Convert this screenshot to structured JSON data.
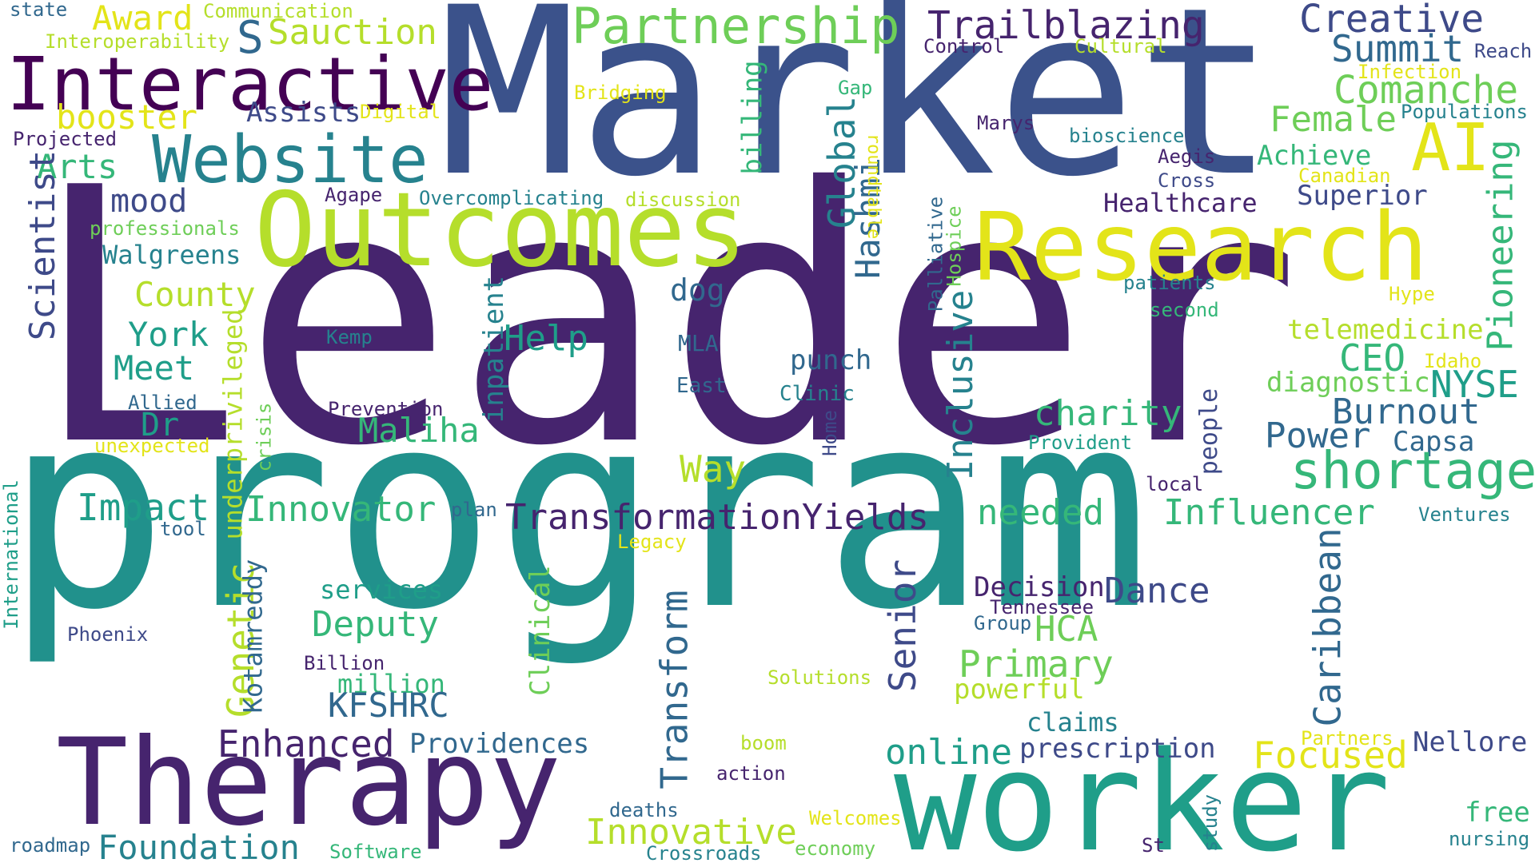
{
  "palette": {
    "dark_purple": "#46246e",
    "indigo": "#3e4a89",
    "blue_slate": "#31688e",
    "teal": "#26828e",
    "sea_green": "#1f9e89",
    "green": "#35b779",
    "lime": "#6ece58",
    "yellow_green": "#b5de2b",
    "yellow": "#e3e419"
  },
  "words": [
    {
      "id": "leader",
      "text": "Leader",
      "color": "#46246e"
    },
    {
      "id": "program",
      "text": "program",
      "color": "#21918c"
    },
    {
      "id": "market",
      "text": "Market",
      "color": "#3b528b"
    },
    {
      "id": "worker",
      "text": "worker",
      "color": "#1f9e89"
    },
    {
      "id": "therapy",
      "text": "Therapy",
      "color": "#46246e"
    },
    {
      "id": "outcomes",
      "text": "Outcomes",
      "color": "#b5de2b"
    },
    {
      "id": "research",
      "text": "Research",
      "color": "#e3e419"
    },
    {
      "id": "interactive",
      "text": "Interactive",
      "color": "#440154"
    },
    {
      "id": "website",
      "text": "Website",
      "color": "#26828e"
    },
    {
      "id": "partnership",
      "text": "Partnership",
      "color": "#6ece58"
    },
    {
      "id": "trailblazing",
      "text": "Trailblazing",
      "color": "#46246e"
    },
    {
      "id": "creative",
      "text": "Creative",
      "color": "#3e4a89"
    },
    {
      "id": "summit",
      "text": "Summit",
      "color": "#31688e"
    },
    {
      "id": "ai",
      "text": "AI",
      "color": "#e3e419"
    },
    {
      "id": "comanche",
      "text": "Comanche",
      "color": "#6ece58"
    },
    {
      "id": "female",
      "text": "Female",
      "color": "#6ece58"
    },
    {
      "id": "achieve",
      "text": "Achieve",
      "color": "#35b779"
    },
    {
      "id": "superior",
      "text": "Superior",
      "color": "#3e4a89"
    },
    {
      "id": "healthcare",
      "text": "Healthcare",
      "color": "#46246e"
    },
    {
      "id": "pioneering",
      "text": "Pioneering",
      "color": "#35b779"
    },
    {
      "id": "award",
      "text": "Award",
      "color": "#e3e419"
    },
    {
      "id": "sauction",
      "text": "Sauction",
      "color": "#b5de2b"
    },
    {
      "id": "s",
      "text": "S",
      "color": "#31688e"
    },
    {
      "id": "booster",
      "text": "booster",
      "color": "#e3e419"
    },
    {
      "id": "assists",
      "text": "Assists",
      "color": "#3e4a89"
    },
    {
      "id": "arts",
      "text": "Arts",
      "color": "#35b779"
    },
    {
      "id": "mood",
      "text": "mood",
      "color": "#3e4a89"
    },
    {
      "id": "scientist",
      "text": "Scientist",
      "color": "#3e4a89"
    },
    {
      "id": "walgreens",
      "text": "Walgreens",
      "color": "#26828e"
    },
    {
      "id": "county",
      "text": "County",
      "color": "#b5de2b"
    },
    {
      "id": "york",
      "text": "York",
      "color": "#1f9e89"
    },
    {
      "id": "meet",
      "text": "Meet",
      "color": "#1f9e89"
    },
    {
      "id": "dr",
      "text": "Dr",
      "color": "#1f9e89"
    },
    {
      "id": "maliha",
      "text": "Maliha",
      "color": "#35b779"
    },
    {
      "id": "help",
      "text": "Help",
      "color": "#1f9e89"
    },
    {
      "id": "global",
      "text": "Global",
      "color": "#26828e"
    },
    {
      "id": "hashmi",
      "text": "Hashmi",
      "color": "#31688e"
    },
    {
      "id": "billing",
      "text": "billing",
      "color": "#35b779"
    },
    {
      "id": "dog",
      "text": "dog",
      "color": "#31688e"
    },
    {
      "id": "mla",
      "text": "MLA",
      "color": "#31688e"
    },
    {
      "id": "punch",
      "text": "punch",
      "color": "#31688e"
    },
    {
      "id": "east",
      "text": "East",
      "color": "#31688e"
    },
    {
      "id": "clinic",
      "text": "Clinic",
      "color": "#26828e"
    },
    {
      "id": "charity",
      "text": "charity",
      "color": "#35b779"
    },
    {
      "id": "inclusive",
      "text": "Inclusive",
      "color": "#26828e"
    },
    {
      "id": "palliative",
      "text": "Palliative",
      "color": "#31688e"
    },
    {
      "id": "hospice",
      "text": "Hospice",
      "color": "#6ece58"
    },
    {
      "id": "home",
      "text": "Home",
      "color": "#3e4a89"
    },
    {
      "id": "way",
      "text": "Way",
      "color": "#b5de2b"
    },
    {
      "id": "power",
      "text": "Power",
      "color": "#31688e"
    },
    {
      "id": "burnout",
      "text": "Burnout",
      "color": "#31688e"
    },
    {
      "id": "capsa",
      "text": "Capsa",
      "color": "#31688e"
    },
    {
      "id": "shortage",
      "text": "shortage",
      "color": "#35b779"
    },
    {
      "id": "nyse",
      "text": "NYSE",
      "color": "#1f9e89"
    },
    {
      "id": "ceo",
      "text": "CEO",
      "color": "#35b779"
    },
    {
      "id": "diagnostic",
      "text": "diagnostic",
      "color": "#6ece58"
    },
    {
      "id": "telemedicine",
      "text": "telemedicine",
      "color": "#b5de2b"
    },
    {
      "id": "idaho",
      "text": "Idaho",
      "color": "#e3e419"
    },
    {
      "id": "hype",
      "text": "Hype",
      "color": "#e3e419"
    },
    {
      "id": "patients",
      "text": "patients",
      "color": "#26828e"
    },
    {
      "id": "second",
      "text": "second",
      "color": "#35b779"
    },
    {
      "id": "people",
      "text": "people",
      "color": "#3e4a89"
    },
    {
      "id": "provident",
      "text": "Provident",
      "color": "#1f9e89"
    },
    {
      "id": "local",
      "text": "local",
      "color": "#46246e"
    },
    {
      "id": "impact",
      "text": "Impact",
      "color": "#1f9e89"
    },
    {
      "id": "innovator",
      "text": "Innovator",
      "color": "#35b779"
    },
    {
      "id": "transformationyields",
      "text": "TransformationYields",
      "color": "#46246e"
    },
    {
      "id": "needed",
      "text": "needed",
      "color": "#35b779"
    },
    {
      "id": "influencer",
      "text": "Influencer",
      "color": "#35b779"
    },
    {
      "id": "ventures",
      "text": "Ventures",
      "color": "#26828e"
    },
    {
      "id": "inpatient",
      "text": "inpatient",
      "color": "#26828e"
    },
    {
      "id": "underprivileged",
      "text": "underprivileged",
      "color": "#b5de2b"
    },
    {
      "id": "crisis",
      "text": "crisis",
      "color": "#6ece58"
    },
    {
      "id": "genetic",
      "text": "Genetic",
      "color": "#b5de2b"
    },
    {
      "id": "kotamreddy",
      "text": "Kotamreddy",
      "color": "#31688e"
    },
    {
      "id": "transform",
      "text": "Transform",
      "color": "#31688e"
    },
    {
      "id": "clinical",
      "text": "Clinical",
      "color": "#6ece58"
    },
    {
      "id": "senior",
      "text": "Senior",
      "color": "#3e4a89"
    },
    {
      "id": "caribbean",
      "text": "Caribbean",
      "color": "#31688e"
    },
    {
      "id": "decision",
      "text": "Decision",
      "color": "#46246e"
    },
    {
      "id": "dance",
      "text": "Dance",
      "color": "#3e4a89"
    },
    {
      "id": "tennessee",
      "text": "Tennessee",
      "color": "#46246e"
    },
    {
      "id": "group",
      "text": "Group",
      "color": "#31688e"
    },
    {
      "id": "hca",
      "text": "HCA",
      "color": "#6ece58"
    },
    {
      "id": "primary",
      "text": "Primary",
      "color": "#6ece58"
    },
    {
      "id": "powerful",
      "text": "powerful",
      "color": "#b5de2b"
    },
    {
      "id": "claims",
      "text": "claims",
      "color": "#26828e"
    },
    {
      "id": "online",
      "text": "online",
      "color": "#1f9e89"
    },
    {
      "id": "prescription",
      "text": "prescription",
      "color": "#3e4a89"
    },
    {
      "id": "focused",
      "text": "Focused",
      "color": "#e3e419"
    },
    {
      "id": "partners",
      "text": "Partners",
      "color": "#e3e419"
    },
    {
      "id": "nellore",
      "text": "Nellore",
      "color": "#3e4a89"
    },
    {
      "id": "free",
      "text": "free",
      "color": "#35b779"
    },
    {
      "id": "nursing",
      "text": "nursing",
      "color": "#26828e"
    },
    {
      "id": "services",
      "text": "services",
      "color": "#1f9e89"
    },
    {
      "id": "deputy",
      "text": "Deputy",
      "color": "#35b779"
    },
    {
      "id": "billion",
      "text": "Billion",
      "color": "#46246e"
    },
    {
      "id": "million",
      "text": "million",
      "color": "#35b779"
    },
    {
      "id": "kfshrc",
      "text": "KFSHRC",
      "color": "#31688e"
    },
    {
      "id": "enhanced",
      "text": "Enhanced",
      "color": "#46246e"
    },
    {
      "id": "providences",
      "text": "Providences",
      "color": "#31688e"
    },
    {
      "id": "solutions",
      "text": "Solutions",
      "color": "#b5de2b"
    },
    {
      "id": "boom",
      "text": "boom",
      "color": "#b5de2b"
    },
    {
      "id": "action",
      "text": "action",
      "color": "#46246e"
    },
    {
      "id": "deaths",
      "text": "deaths",
      "color": "#31688e"
    },
    {
      "id": "innovative",
      "text": "Innovative",
      "color": "#b5de2b"
    },
    {
      "id": "welcomes",
      "text": "Welcomes",
      "color": "#e3e419"
    },
    {
      "id": "economy",
      "text": "economy",
      "color": "#6ece58"
    },
    {
      "id": "crossroads",
      "text": "Crossroads",
      "color": "#26828e"
    },
    {
      "id": "study",
      "text": "study",
      "color": "#26828e"
    },
    {
      "id": "st",
      "text": "St",
      "color": "#46246e"
    },
    {
      "id": "foundation",
      "text": "Foundation",
      "color": "#26828e"
    },
    {
      "id": "software",
      "text": "Software",
      "color": "#35b779"
    },
    {
      "id": "roadmap",
      "text": "roadmap",
      "color": "#31688e"
    },
    {
      "id": "international",
      "text": "International",
      "color": "#1f9e89"
    },
    {
      "id": "phoenix",
      "text": "Phoenix",
      "color": "#3e4a89"
    },
    {
      "id": "tool",
      "text": "tool",
      "color": "#31688e"
    },
    {
      "id": "plan",
      "text": "plan",
      "color": "#31688e"
    },
    {
      "id": "legacy",
      "text": "Legacy",
      "color": "#e3e419"
    },
    {
      "id": "unexpected",
      "text": "unexpected",
      "color": "#e3e419"
    },
    {
      "id": "allied",
      "text": "Allied",
      "color": "#31688e"
    },
    {
      "id": "prevention",
      "text": "Prevention",
      "color": "#46246e"
    },
    {
      "id": "kemp",
      "text": "Kemp",
      "color": "#26828e"
    },
    {
      "id": "agape",
      "text": "Agape",
      "color": "#46246e"
    },
    {
      "id": "overcomplicating",
      "text": "Overcomplicating",
      "color": "#26828e"
    },
    {
      "id": "discussion",
      "text": "discussion",
      "color": "#b5de2b"
    },
    {
      "id": "professionals",
      "text": "professionals",
      "color": "#6ece58"
    },
    {
      "id": "projected",
      "text": "Projected",
      "color": "#46246e"
    },
    {
      "id": "digital",
      "text": "Digital",
      "color": "#e3e419"
    },
    {
      "id": "bridging",
      "text": "Bridging",
      "color": "#e3e419"
    },
    {
      "id": "state",
      "text": "state",
      "color": "#31688e"
    },
    {
      "id": "communication",
      "text": "Communication",
      "color": "#b5de2b"
    },
    {
      "id": "interoperability",
      "text": "Interoperability",
      "color": "#b5de2b"
    },
    {
      "id": "control",
      "text": "Control",
      "color": "#46246e"
    },
    {
      "id": "cultural",
      "text": "Cultural",
      "color": "#b5de2b"
    },
    {
      "id": "reach",
      "text": "Reach",
      "color": "#3e4a89"
    },
    {
      "id": "infection",
      "text": "Infection",
      "color": "#e3e419"
    },
    {
      "id": "populations",
      "text": "Populations",
      "color": "#26828e"
    },
    {
      "id": "gap",
      "text": "Gap",
      "color": "#35b779"
    },
    {
      "id": "marys",
      "text": "Marys",
      "color": "#46246e"
    },
    {
      "id": "bioscience",
      "text": "bioscience",
      "color": "#26828e"
    },
    {
      "id": "aegis",
      "text": "Aegis",
      "color": "#46246e"
    },
    {
      "id": "cross",
      "text": "Cross",
      "color": "#3e4a89"
    },
    {
      "id": "canadian",
      "text": "Canadian",
      "color": "#e3e419"
    },
    {
      "id": "roundtable",
      "text": "roundtable",
      "color": "#e3e419"
    }
  ]
}
